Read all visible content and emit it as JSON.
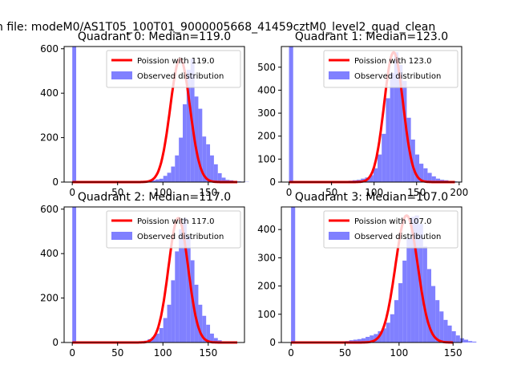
{
  "figure": {
    "suptitle": "n file: modeM0/AS1T05_100T01_9000005668_41459cztM0_level2_quad_clean"
  },
  "chart_data": [
    {
      "type": "histogram",
      "title": "Quadrant 0: Median=119.0",
      "median": 119.0,
      "xlim": [
        -9,
        190
      ],
      "ylim": [
        0,
        610
      ],
      "xticks": [
        0,
        50,
        100,
        150
      ],
      "yticks": [
        0,
        200,
        400,
        600
      ],
      "bin_width": 4.3,
      "zero_bin_height": 610,
      "hist_start": 66,
      "hist_values": [
        1,
        1,
        1,
        2,
        4,
        8,
        12,
        15,
        28,
        42,
        70,
        120,
        200,
        350,
        505,
        555,
        385,
        330,
        205,
        170,
        120,
        80,
        40,
        20,
        10,
        8,
        5,
        3,
        2,
        1
      ],
      "legend": [
        "Poission with 119.0",
        "Observed distribution"
      ],
      "legend_position": "upper right",
      "colors": {
        "fit": "#ff0000",
        "observed": "#8080ff"
      }
    },
    {
      "type": "histogram",
      "title": "Quadrant 1: Median=123.0",
      "median": 123.0,
      "xlim": [
        -9,
        203
      ],
      "ylim": [
        0,
        590
      ],
      "xticks": [
        0,
        50,
        100,
        150,
        200
      ],
      "yticks": [
        0,
        100,
        200,
        300,
        400,
        500
      ],
      "bin_width": 4.9,
      "zero_bin_height": 590,
      "hist_start": 60,
      "hist_values": [
        2,
        4,
        6,
        8,
        10,
        15,
        20,
        30,
        60,
        120,
        210,
        365,
        475,
        565,
        510,
        440,
        280,
        185,
        120,
        80,
        60,
        40,
        25,
        15,
        10,
        8,
        5,
        3,
        2
      ],
      "legend": [
        "Poission with 123.0",
        "Observed distribution"
      ],
      "legend_position": "upper right",
      "colors": {
        "fit": "#ff0000",
        "observed": "#8080ff"
      }
    },
    {
      "type": "histogram",
      "title": "Quadrant 2: Median=117.0",
      "median": 117.0,
      "xlim": [
        -9,
        190
      ],
      "ylim": [
        0,
        610
      ],
      "xticks": [
        0,
        50,
        100,
        150
      ],
      "yticks": [
        0,
        200,
        400,
        600
      ],
      "bin_width": 4.3,
      "zero_bin_height": 610,
      "hist_start": 66,
      "hist_values": [
        1,
        2,
        4,
        8,
        15,
        25,
        40,
        65,
        110,
        170,
        280,
        410,
        510,
        560,
        480,
        370,
        260,
        170,
        120,
        80,
        40,
        20,
        10,
        5,
        3,
        2,
        1
      ],
      "legend": [
        "Poission with 117.0",
        "Observed distribution"
      ],
      "legend_position": "upper right",
      "colors": {
        "fit": "#ff0000",
        "observed": "#8080ff"
      }
    },
    {
      "type": "histogram",
      "title": "Quadrant 3: Median=107.0",
      "median": 107.0,
      "xlim": [
        -9,
        158
      ],
      "ylim": [
        0,
        480
      ],
      "xticks": [
        0,
        50,
        100,
        150
      ],
      "yticks": [
        0,
        100,
        200,
        300,
        400
      ],
      "bin_width": 3.8,
      "zero_bin_height": 480,
      "hist_start": 50,
      "hist_values": [
        5,
        8,
        10,
        12,
        15,
        20,
        25,
        30,
        40,
        50,
        70,
        100,
        150,
        210,
        290,
        370,
        445,
        450,
        420,
        340,
        260,
        200,
        150,
        110,
        80,
        60,
        40,
        25,
        15,
        10,
        5,
        3
      ],
      "legend": [
        "Poission with 107.0",
        "Observed distribution"
      ],
      "legend_position": "upper right",
      "colors": {
        "fit": "#ff0000",
        "observed": "#8080ff"
      }
    }
  ]
}
